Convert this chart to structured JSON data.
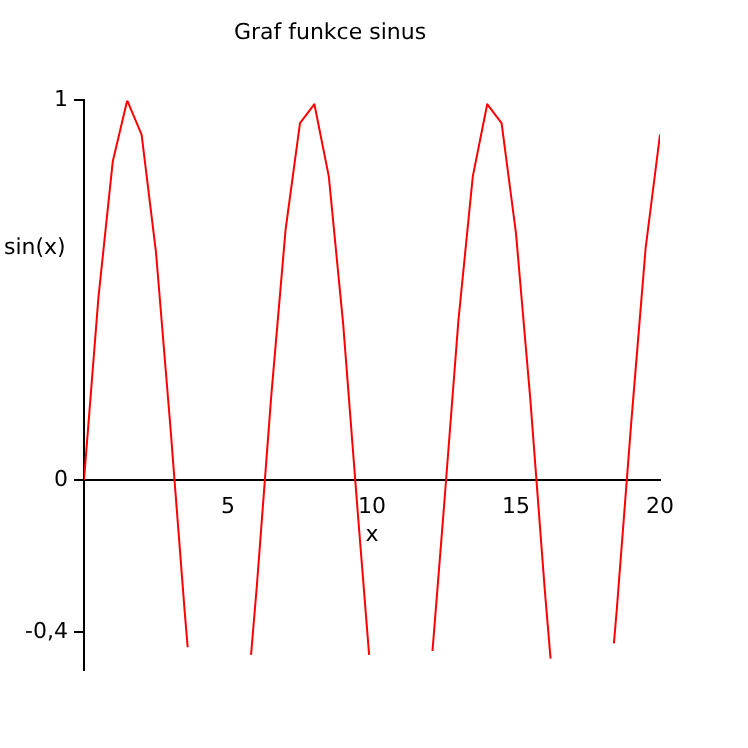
{
  "chart_data": {
    "type": "line",
    "title": "Graf funkce sinus",
    "xlabel": "x",
    "ylabel": "sin(x)",
    "x": [
      0,
      0.5,
      1,
      1.5,
      2,
      2.5,
      3,
      3.5,
      3.6,
      4.5,
      5.8,
      6,
      6.5,
      7,
      7.5,
      8,
      8.5,
      9,
      9.5,
      9.9,
      11,
      12.1,
      12.5,
      13,
      13.5,
      14,
      14.5,
      15,
      15.5,
      16,
      16.2,
      17,
      18.4,
      18.5,
      19,
      19.5,
      20
    ],
    "series": [
      {
        "color": "#ff0000",
        "values": [
          0,
          0.48,
          0.84,
          1.0,
          0.91,
          0.6,
          0.14,
          -0.35,
          -0.44,
          null,
          -0.46,
          -0.28,
          0.22,
          0.66,
          0.94,
          0.99,
          0.8,
          0.41,
          -0.08,
          -0.46,
          null,
          -0.45,
          -0.07,
          0.42,
          0.8,
          0.99,
          0.94,
          0.65,
          0.21,
          -0.29,
          -0.47,
          null,
          -0.43,
          -0.34,
          0.15,
          0.61,
          0.91
        ]
      }
    ],
    "xlim": [
      0,
      20
    ],
    "ylim": [
      -0.5,
      1
    ],
    "xticks": [
      5,
      10,
      15,
      20
    ],
    "yticks": [
      {
        "value": -0.4,
        "label": "-0,4"
      },
      0,
      1
    ],
    "grid": false,
    "legend": false,
    "marker": "none",
    "line_style": "solid"
  }
}
